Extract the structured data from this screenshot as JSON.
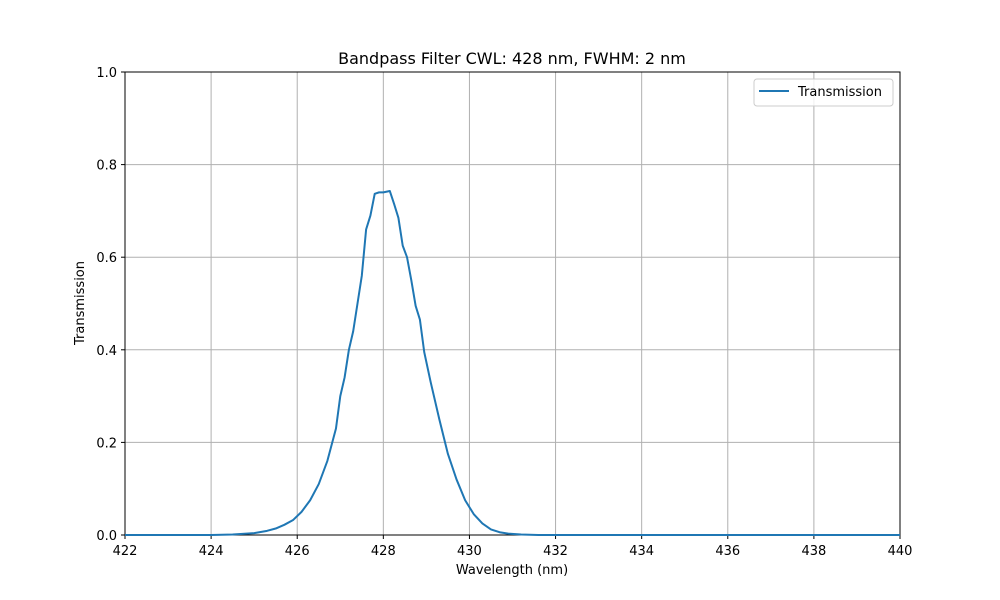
{
  "chart_data": {
    "type": "line",
    "title": "Bandpass Filter CWL: 428 nm, FWHM: 2 nm",
    "xlabel": "Wavelength (nm)",
    "ylabel": "Transmission",
    "xlim": [
      422,
      440
    ],
    "ylim": [
      0,
      1
    ],
    "xticks": [
      422,
      424,
      426,
      428,
      430,
      432,
      434,
      436,
      438,
      440
    ],
    "yticks": [
      0.0,
      0.2,
      0.4,
      0.6,
      0.8,
      1.0
    ],
    "grid": true,
    "legend_position": "top-right",
    "series": [
      {
        "name": "Transmission",
        "color": "#1f77b4",
        "x": [
          422.0,
          424.0,
          424.5,
          425.0,
          425.3,
          425.5,
          425.7,
          425.9,
          426.1,
          426.3,
          426.5,
          426.7,
          426.9,
          427.0,
          427.1,
          427.2,
          427.3,
          427.4,
          427.5,
          427.6,
          427.7,
          427.8,
          427.9,
          428.0,
          428.15,
          428.25,
          428.35,
          428.45,
          428.55,
          428.65,
          428.75,
          428.85,
          428.95,
          429.1,
          429.3,
          429.5,
          429.7,
          429.9,
          430.1,
          430.3,
          430.5,
          430.7,
          430.9,
          431.2,
          431.6,
          432.0,
          434.0,
          436.0,
          438.0,
          440.0
        ],
        "values": [
          0.0,
          0.0,
          0.001,
          0.004,
          0.009,
          0.014,
          0.022,
          0.032,
          0.05,
          0.075,
          0.11,
          0.16,
          0.23,
          0.3,
          0.34,
          0.4,
          0.44,
          0.5,
          0.56,
          0.66,
          0.69,
          0.737,
          0.74,
          0.74,
          0.743,
          0.715,
          0.685,
          0.625,
          0.6,
          0.55,
          0.495,
          0.465,
          0.395,
          0.33,
          0.25,
          0.175,
          0.12,
          0.075,
          0.045,
          0.025,
          0.012,
          0.006,
          0.003,
          0.001,
          0.0,
          0.0,
          0.0,
          0.0,
          0.0,
          0.0
        ]
      }
    ]
  }
}
